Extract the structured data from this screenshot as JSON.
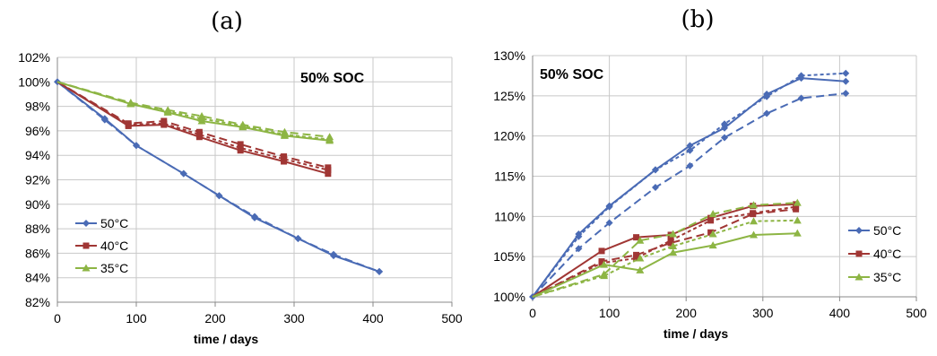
{
  "chart_data": [
    {
      "panel_label": "(a)",
      "type": "line",
      "annotation": "50% SOC",
      "xlabel": "time / days",
      "ylabel": "",
      "xlim": [
        0,
        500
      ],
      "x_ticks": [
        0,
        100,
        200,
        300,
        400,
        500
      ],
      "ylim": [
        82,
        102
      ],
      "y_ticks": [
        82,
        84,
        86,
        88,
        90,
        92,
        94,
        96,
        98,
        100,
        102
      ],
      "y_tick_labels": [
        "82%",
        "84%",
        "86%",
        "88%",
        "90%",
        "92%",
        "94%",
        "96%",
        "98%",
        "100%",
        "102%"
      ],
      "grid": true,
      "legend_placement": "bottom-left",
      "legend": [
        {
          "label": "50°C",
          "color": "#4A6BB5",
          "marker": "diamond"
        },
        {
          "label": "40°C",
          "color": "#A03634",
          "marker": "square"
        },
        {
          "label": "35°C",
          "color": "#8DB544",
          "marker": "triangle"
        }
      ],
      "series": [
        {
          "group": 0,
          "style": "solid",
          "color": "#4A6BB5",
          "marker": "diamond",
          "x": [
            0,
            60,
            100,
            160,
            205,
            250,
            305,
            350,
            408
          ],
          "y": [
            100,
            97.0,
            94.8,
            92.5,
            90.7,
            88.9,
            87.2,
            85.8,
            84.5
          ]
        },
        {
          "group": 0,
          "style": "dashed",
          "color": "#4A6BB5",
          "marker": "diamond",
          "x": [
            0,
            60,
            100,
            160,
            205,
            250,
            305,
            350,
            408
          ],
          "y": [
            100,
            96.9,
            94.8,
            92.5,
            90.7,
            89.0,
            87.2,
            85.9,
            84.5
          ]
        },
        {
          "group": 1,
          "style": "solid",
          "color": "#A03634",
          "marker": "square",
          "x": [
            0,
            90,
            135,
            180,
            232,
            287,
            343
          ],
          "y": [
            100,
            96.4,
            96.5,
            95.5,
            94.4,
            93.5,
            92.5
          ]
        },
        {
          "group": 1,
          "style": "dashed",
          "color": "#A03634",
          "marker": "square",
          "x": [
            0,
            90,
            135,
            180,
            232,
            287,
            343
          ],
          "y": [
            100,
            96.6,
            96.8,
            95.9,
            94.9,
            93.9,
            93.0
          ]
        },
        {
          "group": 1,
          "style": "dotted",
          "color": "#A03634",
          "marker": "square",
          "x": [
            0,
            90,
            135,
            180,
            232,
            287,
            343
          ],
          "y": [
            100,
            96.5,
            96.6,
            95.7,
            94.6,
            93.7,
            92.8
          ]
        },
        {
          "group": 2,
          "style": "solid",
          "color": "#8DB544",
          "marker": "triangle",
          "x": [
            0,
            93,
            140,
            183,
            235,
            288,
            345
          ],
          "y": [
            100,
            98.2,
            97.5,
            96.8,
            96.3,
            95.6,
            95.2
          ]
        },
        {
          "group": 2,
          "style": "dashed",
          "color": "#8DB544",
          "marker": "triangle",
          "x": [
            0,
            93,
            140,
            183,
            235,
            288,
            345
          ],
          "y": [
            100,
            98.3,
            97.7,
            97.2,
            96.5,
            95.9,
            95.5
          ]
        },
        {
          "group": 2,
          "style": "dotted",
          "color": "#8DB544",
          "marker": "triangle",
          "x": [
            0,
            93,
            140,
            183,
            235,
            288,
            345
          ],
          "y": [
            100,
            98.2,
            97.6,
            97.0,
            96.4,
            95.7,
            95.3
          ]
        }
      ]
    },
    {
      "panel_label": "(b)",
      "type": "line",
      "annotation": "50% SOC",
      "xlabel": "time / days",
      "ylabel": "",
      "xlim": [
        0,
        500
      ],
      "x_ticks": [
        0,
        100,
        200,
        300,
        400,
        500
      ],
      "ylim": [
        100,
        130
      ],
      "y_ticks": [
        100,
        105,
        110,
        115,
        120,
        125,
        130
      ],
      "y_tick_labels": [
        "100%",
        "105%",
        "110%",
        "115%",
        "120%",
        "125%",
        "130%"
      ],
      "grid": true,
      "legend_placement": "bottom-right",
      "legend": [
        {
          "label": "50°C",
          "color": "#4A6BB5",
          "marker": "diamond"
        },
        {
          "label": "40°C",
          "color": "#A03634",
          "marker": "square"
        },
        {
          "label": "35°C",
          "color": "#8DB544",
          "marker": "triangle"
        }
      ],
      "series": [
        {
          "group": 0,
          "style": "solid",
          "color": "#4A6BB5",
          "marker": "diamond",
          "x": [
            0,
            60,
            100,
            160,
            205,
            250,
            305,
            350,
            408
          ],
          "y": [
            100,
            107.8,
            111.3,
            115.8,
            118.8,
            121.0,
            125.2,
            127.2,
            126.8
          ]
        },
        {
          "group": 0,
          "style": "dashed",
          "color": "#4A6BB5",
          "marker": "diamond",
          "x": [
            0,
            60,
            100,
            160,
            205,
            250,
            305,
            350,
            408
          ],
          "y": [
            100,
            106.0,
            109.2,
            113.6,
            116.3,
            119.8,
            122.8,
            124.7,
            125.3
          ]
        },
        {
          "group": 0,
          "style": "dotted",
          "color": "#4A6BB5",
          "marker": "diamond",
          "x": [
            0,
            60,
            100,
            160,
            205,
            250,
            305,
            350,
            408
          ],
          "y": [
            100,
            107.5,
            111.2,
            115.8,
            118.2,
            121.5,
            124.9,
            127.5,
            127.8
          ]
        },
        {
          "group": 1,
          "style": "solid",
          "color": "#A03634",
          "marker": "square",
          "x": [
            0,
            90,
            135,
            180,
            232,
            287,
            343
          ],
          "y": [
            100,
            105.7,
            107.4,
            107.7,
            109.8,
            111.3,
            111.5
          ]
        },
        {
          "group": 1,
          "style": "dashed",
          "color": "#A03634",
          "marker": "square",
          "x": [
            0,
            90,
            135,
            180,
            232,
            287,
            343
          ],
          "y": [
            100,
            104.4,
            105.2,
            106.7,
            108.0,
            110.3,
            110.9
          ]
        },
        {
          "group": 1,
          "style": "dotted",
          "color": "#A03634",
          "marker": "square",
          "x": [
            0,
            90,
            135,
            180,
            232,
            287,
            343
          ],
          "y": [
            100,
            104.2,
            104.8,
            107.0,
            109.5,
            110.4,
            111.2
          ]
        },
        {
          "group": 2,
          "style": "solid",
          "color": "#8DB544",
          "marker": "triangle",
          "x": [
            0,
            93,
            140,
            183,
            235,
            288,
            345
          ],
          "y": [
            100,
            104.0,
            103.3,
            105.5,
            106.4,
            107.7,
            107.9
          ]
        },
        {
          "group": 2,
          "style": "dashed",
          "color": "#8DB544",
          "marker": "triangle",
          "x": [
            0,
            93,
            140,
            183,
            235,
            288,
            345
          ],
          "y": [
            100,
            102.8,
            107.0,
            107.8,
            110.3,
            111.4,
            111.7
          ]
        },
        {
          "group": 2,
          "style": "dotted",
          "color": "#8DB544",
          "marker": "triangle",
          "x": [
            0,
            93,
            140,
            183,
            235,
            288,
            345
          ],
          "y": [
            100,
            102.6,
            104.8,
            106.3,
            107.8,
            109.4,
            109.5
          ]
        }
      ]
    }
  ]
}
